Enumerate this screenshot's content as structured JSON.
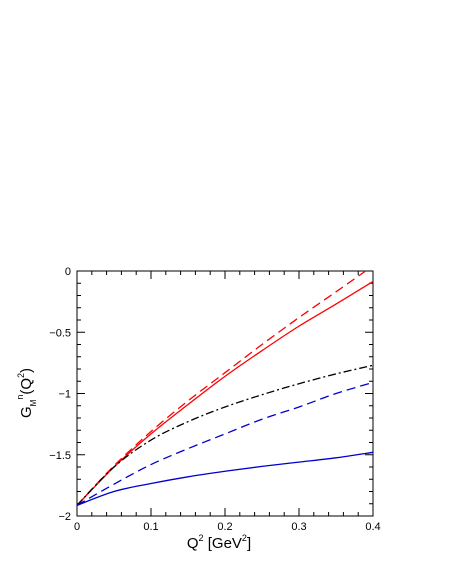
{
  "chart_data": {
    "type": "line",
    "xlabel": {
      "base": "Q",
      "sup": "2",
      "mid": " [GeV",
      "sup2": "2",
      "end": "]"
    },
    "ylabel": {
      "base": "G",
      "sub": "M",
      "sup": "n",
      "mid": "(Q",
      "sup2": "2",
      "end": ")"
    },
    "xlim": [
      0,
      0.4
    ],
    "ylim": [
      -2,
      0
    ],
    "x_ticks": [
      0,
      0.1,
      0.2,
      0.3,
      0.4
    ],
    "x_tick_labels": [
      "0",
      "0.1",
      "0.2",
      "0.3",
      "0.4"
    ],
    "y_ticks": [
      -2,
      -1.5,
      -1,
      -0.5,
      0
    ],
    "y_tick_labels": [
      "−2",
      "−1.5",
      "−1",
      "−0.5",
      "0"
    ],
    "grid": false,
    "series": [
      {
        "color": "#ff0000",
        "dash": "solid",
        "x": [
          0,
          0.05,
          0.1,
          0.15,
          0.2,
          0.25,
          0.3,
          0.35,
          0.4
        ],
        "y": [
          -1.913,
          -1.6,
          -1.33,
          -1.09,
          -0.86,
          -0.65,
          -0.45,
          -0.27,
          -0.085
        ]
      },
      {
        "color": "#ff0000",
        "dash": "dashed",
        "x": [
          0,
          0.05,
          0.1,
          0.15,
          0.2,
          0.25,
          0.3,
          0.35,
          0.39
        ],
        "y": [
          -1.913,
          -1.59,
          -1.31,
          -1.06,
          -0.83,
          -0.6,
          -0.38,
          -0.17,
          0.0
        ]
      },
      {
        "color": "#000000",
        "dash": "dashdot",
        "x": [
          0,
          0.05,
          0.1,
          0.15,
          0.2,
          0.25,
          0.3,
          0.35,
          0.4
        ],
        "y": [
          -1.913,
          -1.6,
          -1.38,
          -1.23,
          -1.11,
          -1.01,
          -0.92,
          -0.84,
          -0.77
        ]
      },
      {
        "color": "#0000cc",
        "dash": "dashed",
        "x": [
          0,
          0.05,
          0.1,
          0.15,
          0.2,
          0.25,
          0.3,
          0.35,
          0.4
        ],
        "y": [
          -1.913,
          -1.74,
          -1.58,
          -1.45,
          -1.33,
          -1.21,
          -1.11,
          -1.0,
          -0.91
        ]
      },
      {
        "color": "#0000cc",
        "dash": "solid",
        "x": [
          0,
          0.05,
          0.1,
          0.15,
          0.2,
          0.25,
          0.3,
          0.35,
          0.4
        ],
        "y": [
          -1.913,
          -1.8,
          -1.735,
          -1.68,
          -1.635,
          -1.595,
          -1.56,
          -1.525,
          -1.48
        ]
      }
    ]
  }
}
